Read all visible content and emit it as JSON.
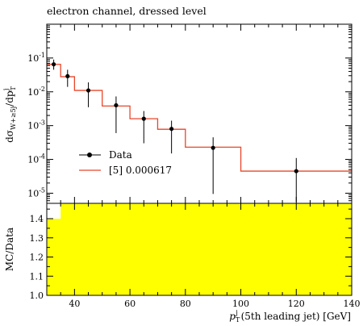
{
  "chart_data": [
    {
      "type": "line",
      "title": "electron channel, dressed level",
      "ylabel": "dσ_{W+≥5j}/dp_T^j",
      "xlim": [
        30,
        140
      ],
      "ylim_log10": [
        -5.3,
        0.0
      ],
      "yscale": "log",
      "y_tick_labels": [
        "10^{-1}",
        "10^{-2}",
        "10^{-3}",
        "10^{-4}",
        "10^{-5}"
      ],
      "y_tick_values": [
        0.1,
        0.01,
        0.001,
        0.0001,
        1e-05
      ],
      "legend_position": "lower-left",
      "series": [
        {
          "name": "Data",
          "kind": "points-with-errorbars",
          "color": "#000000",
          "x": [
            32.5,
            37.5,
            45,
            55,
            65,
            75,
            90,
            120
          ],
          "y": [
            0.065,
            0.029,
            0.011,
            0.004,
            0.0016,
            0.0008,
            0.00022,
            4.5e-05
          ],
          "y_low": [
            0.045,
            0.014,
            0.0035,
            0.0006,
            0.0003,
            0.00015,
            9.5e-06,
            5.5e-06
          ],
          "y_high": [
            0.09,
            0.045,
            0.019,
            0.0073,
            0.0027,
            0.0014,
            0.00045,
            0.00011
          ]
        },
        {
          "name": "[5] 0.000617",
          "kind": "step",
          "color": "#e8462a",
          "edges": [
            30,
            35,
            40,
            50,
            60,
            70,
            80,
            100,
            140
          ],
          "values": [
            0.065,
            0.028,
            0.011,
            0.0038,
            0.0016,
            0.00078,
            0.00023,
            4.5e-05
          ]
        }
      ]
    },
    {
      "type": "area",
      "ylabel": "MC/Data",
      "xlabel": "p_T^j (5th leading jet) [GeV]",
      "xlim": [
        30,
        140
      ],
      "ylim": [
        1.0,
        1.48
      ],
      "x_tick_labels": [
        "40",
        "60",
        "80",
        "100",
        "120",
        "140"
      ],
      "x_tick_values": [
        40,
        60,
        80,
        100,
        120,
        140
      ],
      "y_tick_labels": [
        "1.0",
        "1.1",
        "1.2",
        "1.3",
        "1.4"
      ],
      "y_tick_values": [
        1.0,
        1.1,
        1.2,
        1.3,
        1.4
      ],
      "band_color": "#ffff00",
      "band": {
        "edges": [
          30,
          35,
          140
        ],
        "upper": [
          1.4,
          1.48
        ]
      }
    }
  ]
}
